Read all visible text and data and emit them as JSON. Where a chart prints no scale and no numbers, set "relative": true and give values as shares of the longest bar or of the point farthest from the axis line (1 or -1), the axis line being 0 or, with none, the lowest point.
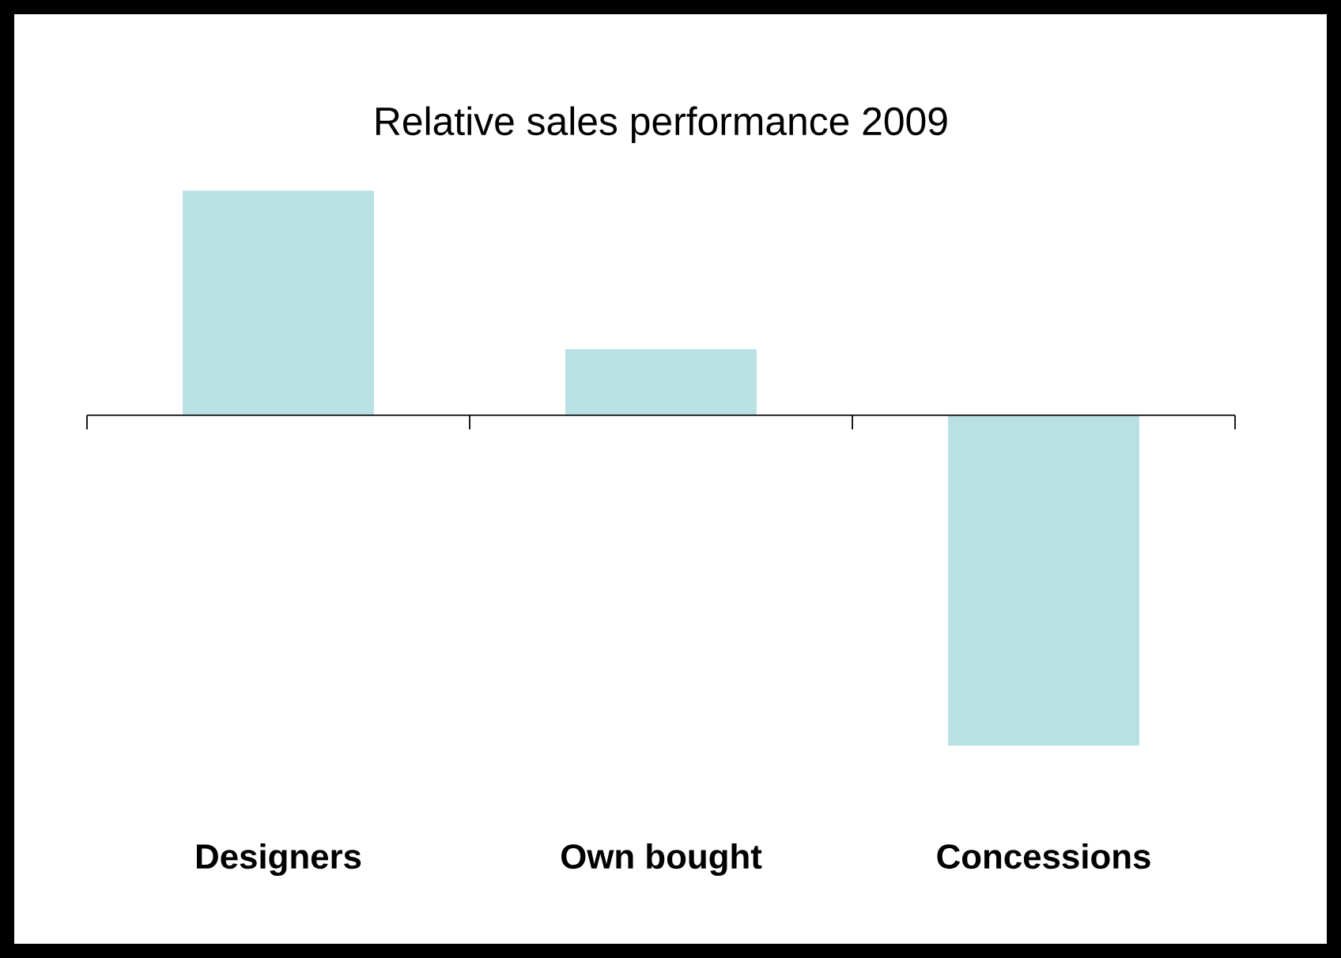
{
  "chart_data": {
    "type": "bar",
    "title": "Relative sales performance 2009",
    "relative": true,
    "categories": [
      "Designers",
      "Own bought",
      "Concessions"
    ],
    "values": [
      0.68,
      0.2,
      -1
    ],
    "color": "#b9e0e3"
  }
}
